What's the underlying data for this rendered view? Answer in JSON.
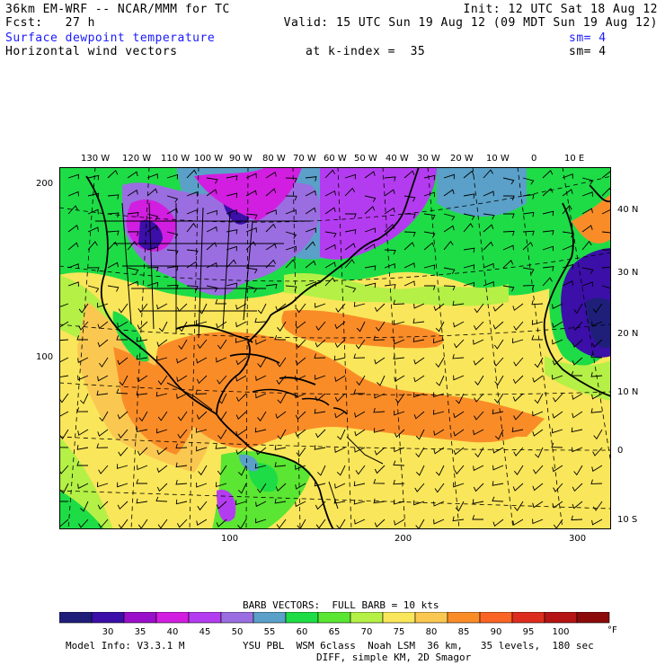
{
  "header": {
    "model": "36km EM-WRF -- NCAR/MMM for TC",
    "init": "Init: 12 UTC Sat 18 Aug 12",
    "fcst": "Fcst:   27 h",
    "valid": "Valid: 15 UTC Sun 19 Aug 12 (09 MDT Sun 19 Aug 12)",
    "field1": "Surface dewpoint temperature",
    "field1_sm": "sm= 4",
    "field2": "Horizontal wind vectors",
    "k_index": "at k-index =  35",
    "field2_sm": "sm= 4"
  },
  "map": {
    "lon_labels": [
      "130 W",
      "120 W",
      "110 W",
      "100 W",
      "90 W",
      "80 W",
      "70 W",
      "60 W",
      "50 W",
      "40 W",
      "30 W",
      "20 W",
      "10 W",
      "0",
      "10 E"
    ],
    "lat_labels": [
      "40 N",
      "30 N",
      "20 N",
      "10 N",
      "0",
      "10 S"
    ],
    "grid_x_labels": [
      "100",
      "200",
      "300"
    ],
    "grid_y_labels": [
      "200",
      "100"
    ]
  },
  "legend": {
    "barb_note": "BARB VECTORS:  FULL BARB = 10 kts",
    "values": [
      "30",
      "35",
      "40",
      "45",
      "50",
      "55",
      "60",
      "65",
      "70",
      "75",
      "80",
      "85",
      "90",
      "95",
      "100"
    ],
    "unit": "°F",
    "colors": [
      "#1f1f7a",
      "#3b0fa8",
      "#9a0fc9",
      "#d21ee0",
      "#b43cf0",
      "#9a6ee0",
      "#5aa0c8",
      "#1edc46",
      "#5ae632",
      "#b4f046",
      "#fae65a",
      "#fac850",
      "#fa8c28",
      "#fa6424",
      "#dc2d1e",
      "#b41414",
      "#8c0a0a"
    ],
    "model_info": "Model Info: V3.3.1 M",
    "physics": "YSU PBL  WSM 6class  Noah LSM  36 km,   35 levels,  180 sec",
    "diff": "DIFF, simple KM, 2D Smagor"
  }
}
